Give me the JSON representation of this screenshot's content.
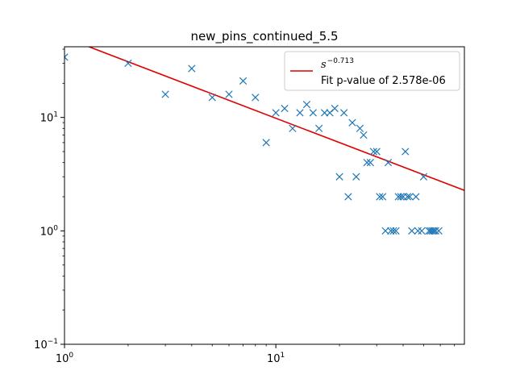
{
  "chart_data": {
    "type": "scatter",
    "title": "new_pins_continued_5.5",
    "xlabel": "",
    "ylabel": "",
    "xscale": "log",
    "yscale": "log",
    "xlim": [
      1,
      78
    ],
    "ylim": [
      0.1,
      42
    ],
    "x_ticks": [
      {
        "value": 1,
        "base": "10",
        "exp": "0"
      },
      {
        "value": 10,
        "base": "10",
        "exp": "1"
      }
    ],
    "y_ticks": [
      {
        "value": 0.1,
        "base": "10",
        "exp": "−1"
      },
      {
        "value": 1,
        "base": "10",
        "exp": "0"
      },
      {
        "value": 10,
        "base": "10",
        "exp": "1"
      }
    ],
    "marker": "x",
    "marker_color": "#1f77b4",
    "fit_color": "#e00000",
    "fit": {
      "exponent_label": "−0.713",
      "exponent": -0.713,
      "coefficient": 50.8
    },
    "legend": {
      "position": "top-right",
      "fit_label": "s",
      "fit_exponent_label": "−0.713",
      "pvalue_label": "Fit p-value of 2.578e-06"
    },
    "points": [
      [
        1,
        34
      ],
      [
        2,
        30
      ],
      [
        3,
        16
      ],
      [
        4,
        27
      ],
      [
        5,
        15
      ],
      [
        6,
        16
      ],
      [
        7,
        21
      ],
      [
        8,
        15
      ],
      [
        9,
        6
      ],
      [
        10,
        11
      ],
      [
        11,
        12
      ],
      [
        12,
        8
      ],
      [
        13,
        11
      ],
      [
        14,
        13
      ],
      [
        15,
        11
      ],
      [
        16,
        8
      ],
      [
        17,
        11
      ],
      [
        18,
        11
      ],
      [
        19,
        12
      ],
      [
        20,
        3
      ],
      [
        21,
        11
      ],
      [
        22,
        2
      ],
      [
        23,
        9
      ],
      [
        24,
        3
      ],
      [
        25,
        8
      ],
      [
        26,
        7
      ],
      [
        27,
        4
      ],
      [
        28,
        4
      ],
      [
        29,
        5
      ],
      [
        30,
        5
      ],
      [
        31,
        2
      ],
      [
        32,
        2
      ],
      [
        33,
        1
      ],
      [
        34,
        4
      ],
      [
        35,
        1
      ],
      [
        36,
        1
      ],
      [
        37,
        1
      ],
      [
        38,
        2
      ],
      [
        39,
        2
      ],
      [
        40,
        2
      ],
      [
        41,
        5
      ],
      [
        42,
        2
      ],
      [
        43,
        2
      ],
      [
        44,
        1
      ],
      [
        46,
        2
      ],
      [
        47,
        1
      ],
      [
        49,
        1
      ],
      [
        50,
        3
      ],
      [
        53,
        1
      ],
      [
        54,
        1
      ],
      [
        55,
        1
      ],
      [
        56,
        1
      ],
      [
        57,
        1
      ],
      [
        59,
        1
      ]
    ]
  }
}
